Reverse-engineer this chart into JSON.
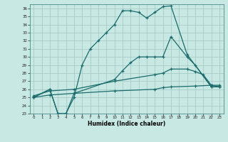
{
  "xlabel": "Humidex (Indice chaleur)",
  "bg_color": "#c8e8e4",
  "line_color": "#1a6b6b",
  "grid_color": "#a0c8c4",
  "xlim": [
    -0.5,
    23.5
  ],
  "ylim": [
    23,
    36.5
  ],
  "xticks": [
    0,
    1,
    2,
    3,
    4,
    5,
    6,
    7,
    8,
    9,
    10,
    11,
    12,
    13,
    14,
    15,
    16,
    17,
    18,
    19,
    20,
    21,
    22,
    23
  ],
  "yticks": [
    23,
    24,
    25,
    26,
    27,
    28,
    29,
    30,
    31,
    32,
    33,
    34,
    35,
    36
  ],
  "line1_x": [
    0,
    2,
    3,
    4,
    5,
    6,
    7,
    8,
    9,
    10,
    11,
    12,
    13,
    14,
    15,
    16,
    17,
    19,
    22,
    23
  ],
  "line1_y": [
    25,
    26,
    23,
    23,
    25,
    29,
    31,
    32,
    33,
    34,
    35.7,
    35.7,
    35.5,
    34.8,
    35.5,
    36.2,
    36.3,
    30.3,
    26.3,
    26.3
  ],
  "line2_x": [
    0,
    2,
    3,
    4,
    5,
    10,
    11,
    12,
    13,
    14,
    15,
    16,
    17,
    19,
    20,
    22,
    23
  ],
  "line2_y": [
    25,
    26,
    23,
    23,
    25.5,
    27.2,
    28.3,
    29.3,
    30,
    30,
    30,
    30,
    32.5,
    30,
    29,
    26.3,
    26.3
  ],
  "line3_x": [
    0,
    2,
    5,
    10,
    15,
    16,
    17,
    19,
    20,
    21,
    22,
    23
  ],
  "line3_y": [
    25.2,
    25.8,
    26.0,
    27.0,
    27.8,
    28.0,
    28.5,
    28.5,
    28.2,
    27.8,
    26.5,
    26.3
  ],
  "line4_x": [
    0,
    2,
    5,
    10,
    15,
    16,
    17,
    20,
    22,
    23
  ],
  "line4_y": [
    25.0,
    25.3,
    25.5,
    25.8,
    26.0,
    26.2,
    26.3,
    26.4,
    26.5,
    26.5
  ]
}
